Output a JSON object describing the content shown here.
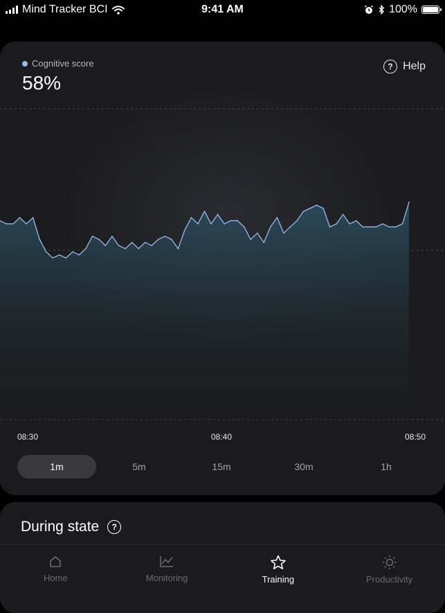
{
  "status": {
    "carrier": "Mind Tracker BCI",
    "time": "9:41 AM",
    "battery": "100%"
  },
  "metric": {
    "legend": "Cognitive score",
    "value": "58%",
    "help_label": "Help",
    "accent": "#9cb8f0"
  },
  "chart_data": {
    "type": "area",
    "x_ticks": [
      "08:30",
      "08:40",
      "08:50"
    ],
    "x": [
      "08:30",
      "08:30",
      "08:30",
      "08:30",
      "08:30",
      "08:30",
      "08:31",
      "08:31",
      "08:31",
      "08:31",
      "08:31",
      "08:31",
      "08:31",
      "08:31",
      "08:32",
      "08:32",
      "08:32",
      "08:32",
      "08:33",
      "08:33",
      "08:33",
      "08:33",
      "08:33",
      "08:33",
      "08:34",
      "08:34",
      "08:34",
      "08:35",
      "08:35",
      "08:35",
      "08:36",
      "08:36",
      "08:36",
      "08:37",
      "08:37",
      "08:37",
      "08:38",
      "08:38",
      "08:38",
      "08:38",
      "08:39",
      "08:39",
      "08:40",
      "08:40",
      "08:41",
      "08:41",
      "08:42",
      "08:42",
      "08:43",
      "08:43",
      "08:44",
      "08:44",
      "08:44",
      "08:45",
      "08:45",
      "08:46",
      "08:46",
      "08:47",
      "08:48",
      "08:48",
      "08:48",
      "08:49",
      "08:50"
    ],
    "values": [
      64,
      63,
      63,
      65,
      63,
      65,
      58,
      54,
      52,
      53,
      52,
      54,
      53,
      55,
      59,
      58,
      56,
      59,
      56,
      55,
      57,
      55,
      57,
      56,
      58,
      59,
      58,
      55,
      61,
      65,
      63,
      67,
      63,
      66,
      63,
      64,
      64,
      62,
      58,
      60,
      57,
      62,
      65,
      60,
      62,
      64,
      67,
      68,
      69,
      68,
      62,
      63,
      66,
      63,
      64,
      62,
      62,
      62,
      63,
      62,
      62,
      63,
      70
    ],
    "ylim": [
      0,
      100
    ],
    "grid": true,
    "line_color": "#9cb8f0"
  },
  "ranges": [
    "1m",
    "5m",
    "15m",
    "30m",
    "1h"
  ],
  "active_range": "1m",
  "state_section": {
    "title": "During state"
  },
  "tabs": [
    {
      "label": "Home",
      "icon": "home-icon"
    },
    {
      "label": "Monitoring",
      "icon": "chart-icon"
    },
    {
      "label": "Training",
      "icon": "star-icon"
    },
    {
      "label": "Productivity",
      "icon": "sun-icon"
    }
  ],
  "active_tab": "Training"
}
